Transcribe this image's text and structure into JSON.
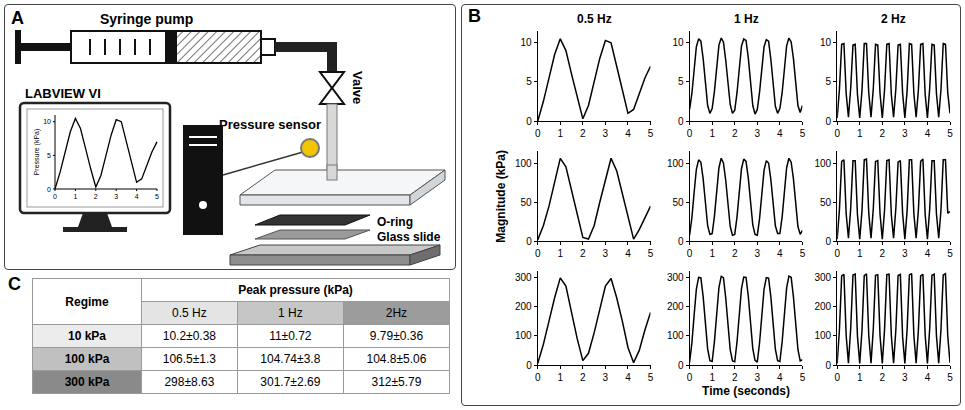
{
  "diagram": {
    "label": "A",
    "syringe_pump": "Syringe pump",
    "valve": "Valve",
    "pressure_sensor": "Pressure sensor",
    "computer": "LABVIEW VI",
    "o_ring": "O-ring",
    "glass_slide": "Glass slide",
    "monitor_plot": {
      "y_label": "Pressure (kPa)",
      "xlim": [
        0,
        5
      ],
      "xticks": [
        0,
        1,
        2,
        3,
        4,
        5
      ],
      "ylim": [
        0,
        11
      ],
      "yticks": [
        0,
        5,
        10
      ]
    }
  },
  "chart_label": "B",
  "chart_data": [
    {
      "type": "line",
      "title": "0.5 Hz",
      "color": "#000000",
      "grid": false,
      "xlim": [
        0,
        5
      ],
      "xticks": [
        0,
        1,
        2,
        3,
        4,
        5
      ],
      "ylim": [
        0,
        11.5
      ],
      "yticks": [
        0,
        5,
        10
      ],
      "x": [
        0,
        0.25,
        0.5,
        0.75,
        1,
        1.25,
        1.5,
        1.75,
        2,
        2.25,
        2.5,
        2.75,
        3,
        3.25,
        3.5,
        3.75,
        4,
        4.25,
        4.5,
        4.75,
        5
      ],
      "values": [
        0,
        2.5,
        5.5,
        8.5,
        10.5,
        9,
        6,
        3,
        0.3,
        2,
        5,
        8,
        10.3,
        10,
        7,
        4,
        1,
        1.5,
        3.5,
        5.5,
        7
      ]
    },
    {
      "type": "line",
      "title": "1 Hz",
      "color": "#000000",
      "grid": false,
      "xlim": [
        0,
        5
      ],
      "xticks": [
        0,
        1,
        2,
        3,
        4,
        5
      ],
      "ylim": [
        0,
        11.5
      ],
      "yticks": [
        0,
        5,
        10
      ],
      "x": [
        0,
        0.1,
        0.2,
        0.3,
        0.4,
        0.5,
        0.6,
        0.7,
        0.8,
        0.9,
        1,
        1.1,
        1.2,
        1.3,
        1.4,
        1.5,
        1.6,
        1.7,
        1.8,
        1.9,
        2,
        2.1,
        2.2,
        2.3,
        2.4,
        2.5,
        2.6,
        2.7,
        2.8,
        2.9,
        3,
        3.1,
        3.2,
        3.3,
        3.4,
        3.5,
        3.6,
        3.7,
        3.8,
        3.9,
        4,
        4.1,
        4.2,
        4.3,
        4.4,
        4.5,
        4.6,
        4.7,
        4.8,
        4.9,
        5
      ],
      "values": [
        1.5,
        3.5,
        6.5,
        9.5,
        10.5,
        10.2,
        8,
        5,
        2,
        1,
        1.6,
        3.8,
        6.8,
        9.7,
        10.6,
        10.1,
        7.8,
        4.8,
        2.1,
        1,
        1.4,
        3.6,
        6.6,
        9.6,
        10.5,
        10.3,
        8.1,
        5,
        2,
        0.9,
        1.5,
        3.7,
        6.7,
        9.5,
        10.4,
        10.2,
        7.9,
        4.9,
        1.9,
        1,
        1.6,
        3.6,
        6.5,
        9.6,
        10.6,
        10.1,
        8,
        5.1,
        2,
        1.1,
        2
      ]
    },
    {
      "type": "line",
      "title": "2 Hz",
      "color": "#000000",
      "grid": false,
      "xlim": [
        0,
        5
      ],
      "xticks": [
        0,
        1,
        2,
        3,
        4,
        5
      ],
      "ylim": [
        0,
        11.5
      ],
      "yticks": [
        0,
        5,
        10
      ],
      "x": [
        0,
        0.1,
        0.2,
        0.3,
        0.4,
        0.5,
        0.6,
        0.7,
        0.8,
        0.9,
        1,
        1.1,
        1.2,
        1.3,
        1.4,
        1.5,
        1.6,
        1.7,
        1.8,
        1.9,
        2,
        2.1,
        2.2,
        2.3,
        2.4,
        2.5,
        2.6,
        2.7,
        2.8,
        2.9,
        3,
        3.1,
        3.2,
        3.3,
        3.4,
        3.5,
        3.6,
        3.7,
        3.8,
        3.9,
        4,
        4.1,
        4.2,
        4.3,
        4.4,
        4.5,
        4.6,
        4.7,
        4.8,
        4.9,
        5
      ],
      "values": [
        0.4,
        4,
        9.8,
        9.9,
        3.5,
        0.5,
        4.2,
        9.7,
        9.8,
        3.4,
        0.4,
        3.9,
        9.9,
        9.9,
        3.6,
        0.5,
        4.1,
        9.8,
        9.7,
        3.5,
        0.4,
        4,
        9.8,
        9.9,
        3.4,
        0.5,
        4.1,
        9.7,
        9.8,
        3.6,
        0.4,
        3.9,
        9.9,
        9.8,
        3.5,
        0.5,
        4,
        9.8,
        9.9,
        3.4,
        0.4,
        4.2,
        9.8,
        9.7,
        3.5,
        0.5,
        4,
        9.9,
        9.8,
        3.6,
        1
      ]
    },
    {
      "type": "line",
      "y_label": "Magnitude (kPa)",
      "color": "#000000",
      "grid": false,
      "xlim": [
        0,
        5
      ],
      "xticks": [
        0,
        1,
        2,
        3,
        4,
        5
      ],
      "ylim": [
        0,
        115
      ],
      "yticks": [
        0,
        50,
        100
      ],
      "x": [
        0,
        0.25,
        0.5,
        0.75,
        1,
        1.25,
        1.5,
        1.75,
        2,
        2.25,
        2.5,
        2.75,
        3,
        3.25,
        3.5,
        3.75,
        4,
        4.25,
        4.5,
        4.75,
        5
      ],
      "values": [
        2,
        20,
        45,
        75,
        106,
        95,
        65,
        35,
        5,
        3,
        20,
        50,
        80,
        106,
        90,
        60,
        30,
        3,
        15,
        30,
        45
      ]
    },
    {
      "type": "line",
      "color": "#000000",
      "grid": false,
      "xlim": [
        0,
        5
      ],
      "xticks": [
        0,
        1,
        2,
        3,
        4,
        5
      ],
      "ylim": [
        0,
        115
      ],
      "yticks": [
        0,
        50,
        100
      ],
      "x": [
        0,
        0.1,
        0.2,
        0.3,
        0.4,
        0.5,
        0.6,
        0.7,
        0.8,
        0.9,
        1,
        1.1,
        1.2,
        1.3,
        1.4,
        1.5,
        1.6,
        1.7,
        1.8,
        1.9,
        2,
        2.1,
        2.2,
        2.3,
        2.4,
        2.5,
        2.6,
        2.7,
        2.8,
        2.9,
        3,
        3.1,
        3.2,
        3.3,
        3.4,
        3.5,
        3.6,
        3.7,
        3.8,
        3.9,
        4,
        4.1,
        4.2,
        4.3,
        4.4,
        4.5,
        4.6,
        4.7,
        4.8,
        4.9,
        5
      ],
      "values": [
        8,
        30,
        62,
        92,
        104,
        101,
        80,
        50,
        20,
        9,
        10,
        32,
        65,
        94,
        106,
        100,
        78,
        48,
        19,
        8,
        9,
        31,
        63,
        93,
        105,
        102,
        81,
        51,
        21,
        9,
        8,
        29,
        61,
        91,
        103,
        100,
        79,
        49,
        20,
        10,
        10,
        31,
        64,
        94,
        106,
        101,
        80,
        50,
        19,
        9,
        14
      ]
    },
    {
      "type": "line",
      "color": "#000000",
      "grid": false,
      "xlim": [
        0,
        5
      ],
      "xticks": [
        0,
        1,
        2,
        3,
        4,
        5
      ],
      "ylim": [
        0,
        115
      ],
      "yticks": [
        0,
        50,
        100
      ],
      "x": [
        0,
        0.1,
        0.2,
        0.3,
        0.4,
        0.5,
        0.6,
        0.7,
        0.8,
        0.9,
        1,
        1.1,
        1.2,
        1.3,
        1.4,
        1.5,
        1.6,
        1.7,
        1.8,
        1.9,
        2,
        2.1,
        2.2,
        2.3,
        2.4,
        2.5,
        2.6,
        2.7,
        2.8,
        2.9,
        3,
        3.1,
        3.2,
        3.3,
        3.4,
        3.5,
        3.6,
        3.7,
        3.8,
        3.9,
        4,
        4.1,
        4.2,
        4.3,
        4.4,
        4.5,
        4.6,
        4.7,
        4.8,
        4.9,
        5
      ],
      "values": [
        3,
        40,
        102,
        104,
        35,
        4,
        42,
        103,
        103,
        34,
        3,
        39,
        104,
        105,
        36,
        4,
        41,
        102,
        103,
        35,
        3,
        40,
        103,
        104,
        34,
        4,
        42,
        101,
        103,
        36,
        3,
        39,
        104,
        104,
        35,
        4,
        40,
        102,
        105,
        34,
        3,
        41,
        103,
        103,
        35,
        4,
        40,
        104,
        104,
        36,
        38
      ]
    },
    {
      "type": "line",
      "color": "#000000",
      "grid": false,
      "xlim": [
        0,
        5
      ],
      "xticks": [
        0,
        1,
        2,
        3,
        4,
        5
      ],
      "ylim": [
        0,
        320
      ],
      "yticks": [
        0,
        100,
        200,
        300
      ],
      "x": [
        0,
        0.25,
        0.5,
        0.75,
        1,
        1.25,
        1.5,
        1.75,
        2,
        2.25,
        2.5,
        2.75,
        3,
        3.25,
        3.5,
        3.75,
        4,
        4.25,
        4.5,
        4.75,
        5
      ],
      "values": [
        5,
        70,
        150,
        230,
        298,
        270,
        180,
        90,
        15,
        40,
        110,
        190,
        270,
        296,
        230,
        150,
        60,
        8,
        50,
        120,
        180
      ]
    },
    {
      "type": "line",
      "x_label": "Time (seconds)",
      "color": "#000000",
      "grid": false,
      "xlim": [
        0,
        5
      ],
      "xticks": [
        0,
        1,
        2,
        3,
        4,
        5
      ],
      "ylim": [
        0,
        320
      ],
      "yticks": [
        0,
        100,
        200,
        300
      ],
      "x": [
        0,
        0.1,
        0.2,
        0.3,
        0.4,
        0.5,
        0.6,
        0.7,
        0.8,
        0.9,
        1,
        1.1,
        1.2,
        1.3,
        1.4,
        1.5,
        1.6,
        1.7,
        1.8,
        1.9,
        2,
        2.1,
        2.2,
        2.3,
        2.4,
        2.5,
        2.6,
        2.7,
        2.8,
        2.9,
        3,
        3.1,
        3.2,
        3.3,
        3.4,
        3.5,
        3.6,
        3.7,
        3.8,
        3.9,
        4,
        4.1,
        4.2,
        4.3,
        4.4,
        4.5,
        4.6,
        4.7,
        4.8,
        4.9,
        5
      ],
      "values": [
        10,
        75,
        170,
        260,
        300,
        298,
        235,
        145,
        55,
        15,
        12,
        80,
        175,
        265,
        303,
        299,
        230,
        140,
        52,
        14,
        11,
        78,
        172,
        262,
        301,
        300,
        236,
        146,
        56,
        16,
        10,
        76,
        170,
        260,
        299,
        297,
        233,
        143,
        54,
        15,
        12,
        79,
        174,
        264,
        304,
        300,
        234,
        144,
        53,
        14,
        18
      ]
    },
    {
      "type": "line",
      "color": "#000000",
      "grid": false,
      "xlim": [
        0,
        5
      ],
      "xticks": [
        0,
        1,
        2,
        3,
        4,
        5
      ],
      "ylim": [
        0,
        320
      ],
      "yticks": [
        0,
        100,
        200,
        300
      ],
      "x": [
        0,
        0.1,
        0.2,
        0.3,
        0.4,
        0.5,
        0.6,
        0.7,
        0.8,
        0.9,
        1,
        1.1,
        1.2,
        1.3,
        1.4,
        1.5,
        1.6,
        1.7,
        1.8,
        1.9,
        2,
        2.1,
        2.2,
        2.3,
        2.4,
        2.5,
        2.6,
        2.7,
        2.8,
        2.9,
        3,
        3.1,
        3.2,
        3.3,
        3.4,
        3.5,
        3.6,
        3.7,
        3.8,
        3.9,
        4,
        4.1,
        4.2,
        4.3,
        4.4,
        4.5,
        4.6,
        4.7,
        4.8,
        4.9,
        5
      ],
      "values": [
        5,
        120,
        305,
        310,
        100,
        6,
        125,
        308,
        311,
        98,
        5,
        118,
        306,
        312,
        102,
        6,
        122,
        307,
        309,
        99,
        5,
        121,
        309,
        311,
        101,
        6,
        119,
        306,
        310,
        97,
        5,
        123,
        308,
        313,
        100,
        6,
        120,
        305,
        310,
        102,
        5,
        124,
        307,
        311,
        99,
        6,
        121,
        308,
        312,
        100,
        8
      ]
    }
  ],
  "table": {
    "label": "C",
    "header": {
      "row_head": "Regime",
      "group": "Peak pressure (kPa)",
      "columns": [
        "0.5 Hz",
        "1 Hz",
        "2Hz"
      ]
    },
    "rows": [
      {
        "regime": "10 kPa",
        "cells": [
          "10.2±0.38",
          "11±0.72",
          "9.79±0.36"
        ]
      },
      {
        "regime": "100 kPa",
        "cells": [
          "106.5±1.3",
          "104.74±3.8",
          "104.8±5.06"
        ]
      },
      {
        "regime": "300 kPa",
        "cells": [
          "298±8.63",
          "301.7±2.69",
          "312±5.79"
        ]
      }
    ]
  }
}
